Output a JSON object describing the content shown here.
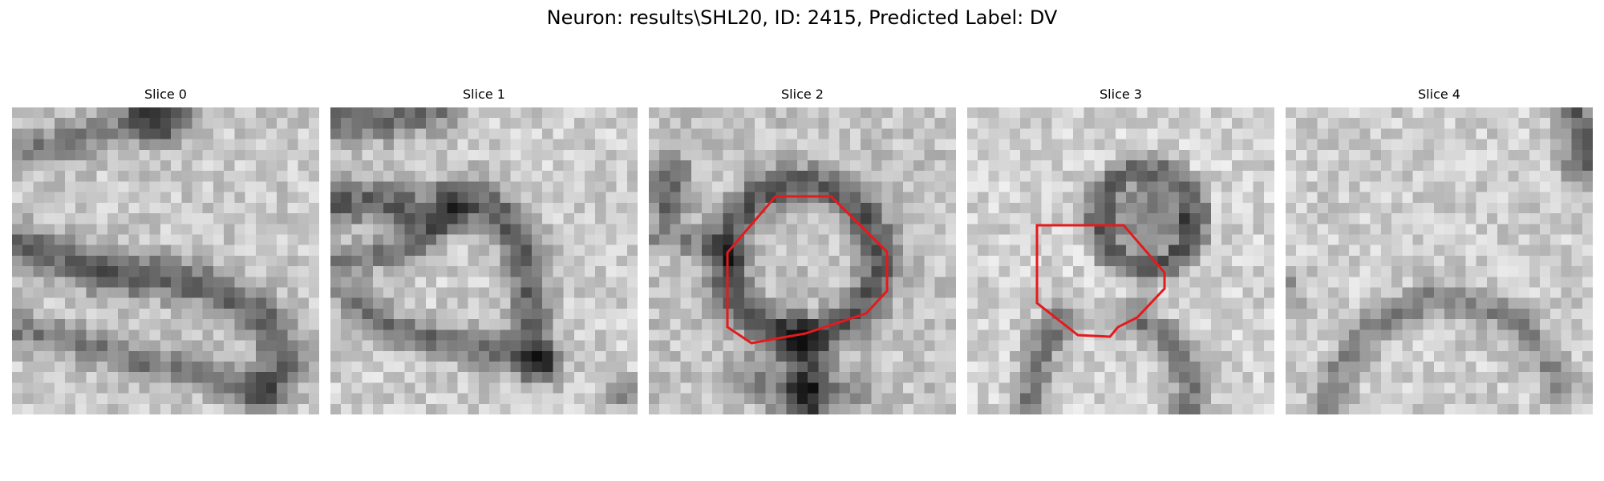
{
  "figure": {
    "title": "Neuron: results\\SHL20, ID: 2415, Predicted Label: DV"
  },
  "panels": [
    {
      "title": "Slice 0",
      "contour": false
    },
    {
      "title": "Slice 1",
      "contour": false
    },
    {
      "title": "Slice 2",
      "contour": true
    },
    {
      "title": "Slice 3",
      "contour": true
    },
    {
      "title": "Slice 4",
      "contour": false
    }
  ],
  "colors": {
    "contour": "#e41a1c",
    "background": "#ffffff"
  },
  "colormap": "gray"
}
